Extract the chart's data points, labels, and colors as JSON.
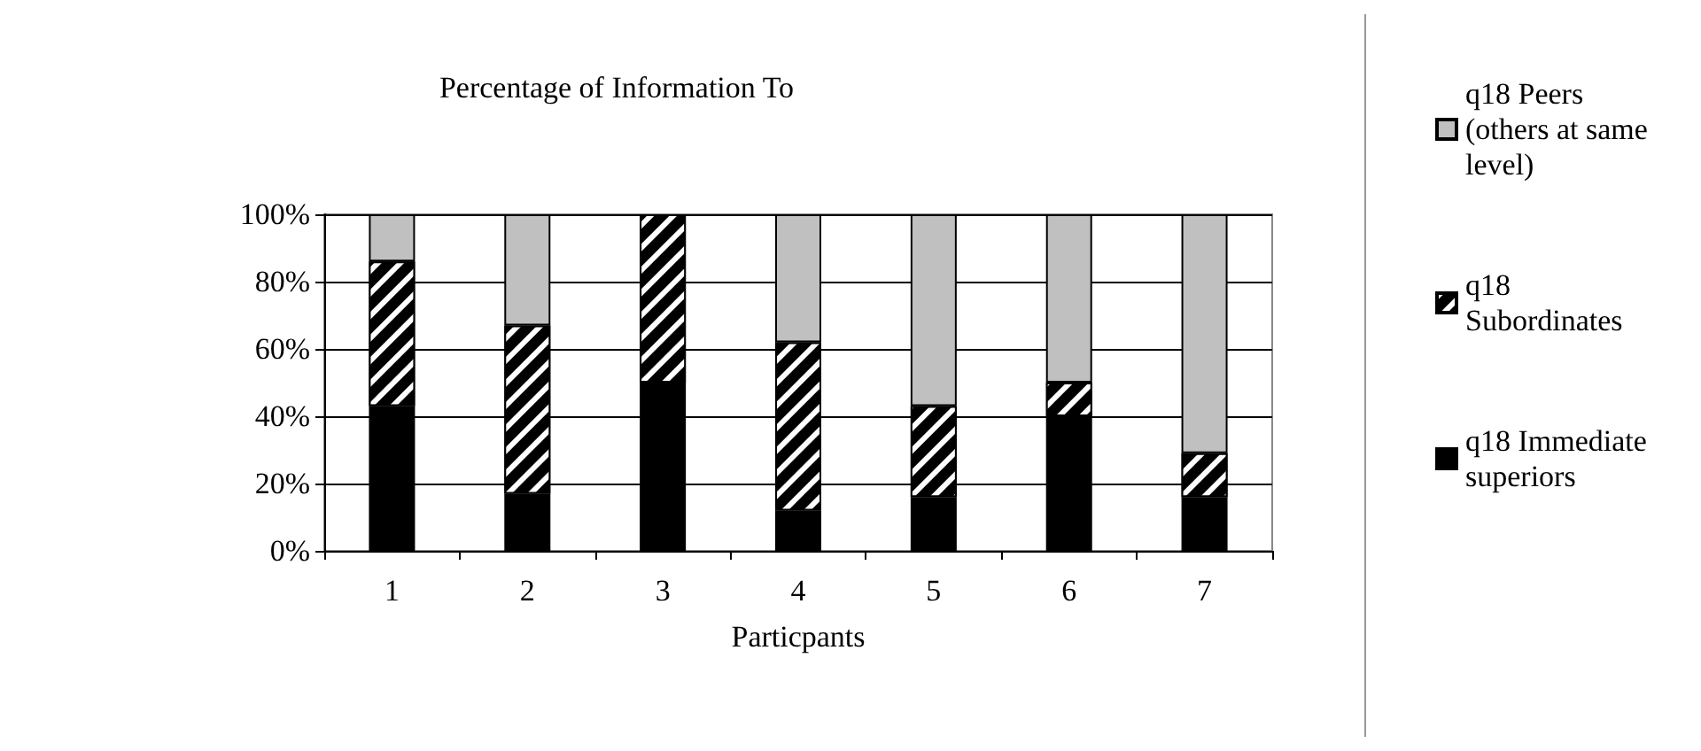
{
  "chart_data": {
    "type": "bar",
    "title": "Percentage of Information To",
    "xlabel": "Particpants",
    "categories": [
      "1",
      "2",
      "3",
      "4",
      "5",
      "6",
      "7"
    ],
    "stacked": true,
    "series": [
      {
        "name": "q18 Immediate superiors",
        "color": "#000000",
        "values": [
          43,
          17,
          50,
          12,
          16,
          40,
          16
        ]
      },
      {
        "name": "q18 Subordinates",
        "color": "#000000",
        "values": [
          43,
          50,
          50,
          50,
          27,
          10,
          13
        ]
      },
      {
        "name": "q18 Peers (others at same level)",
        "color": "#c0c0c0",
        "values": [
          14,
          33,
          0,
          38,
          57,
          50,
          71
        ]
      }
    ],
    "ylim": [
      0,
      100
    ],
    "yticks": [
      {
        "value": 0,
        "label": "0%"
      },
      {
        "value": 20,
        "label": "20%"
      },
      {
        "value": 40,
        "label": "40%"
      },
      {
        "value": 60,
        "label": "60%"
      },
      {
        "value": 80,
        "label": "80%"
      },
      {
        "value": 100,
        "label": "100%"
      }
    ],
    "grid": "y",
    "legend": "right"
  }
}
